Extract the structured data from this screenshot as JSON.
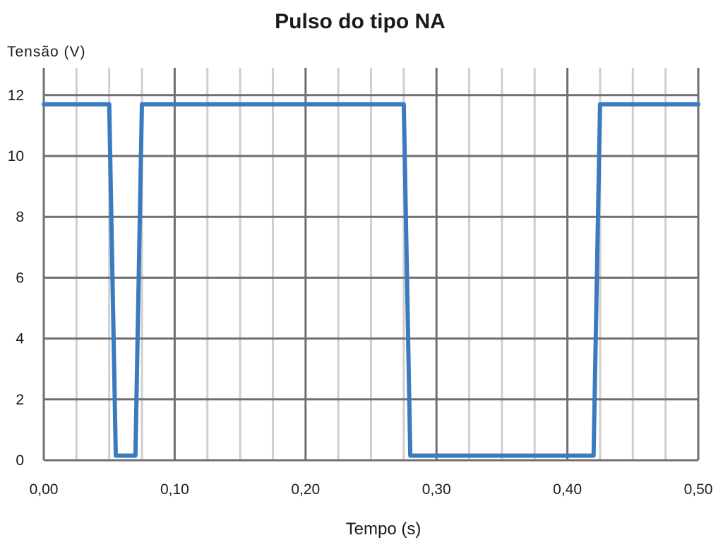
{
  "chart_data": {
    "type": "line",
    "title": "Pulso do tipo NA",
    "xlabel": "Tempo (s)",
    "ylabel": "Tensão (V)",
    "xlim": [
      0,
      0.5
    ],
    "ylim": [
      0,
      12
    ],
    "x_ticks": [
      "0,00",
      "0,10",
      "0,20",
      "0,30",
      "0,40",
      "0,50"
    ],
    "y_ticks": [
      "0",
      "2",
      "4",
      "6",
      "8",
      "10",
      "12"
    ],
    "grid": true,
    "legend": "none",
    "series": [
      {
        "color": "#3a7abf",
        "x": [
          0.0,
          0.05,
          0.055,
          0.07,
          0.075,
          0.275,
          0.28,
          0.42,
          0.425,
          0.5
        ],
        "y": [
          11.7,
          11.7,
          0.15,
          0.15,
          11.7,
          11.7,
          0.15,
          0.15,
          11.7,
          11.7
        ]
      }
    ]
  }
}
